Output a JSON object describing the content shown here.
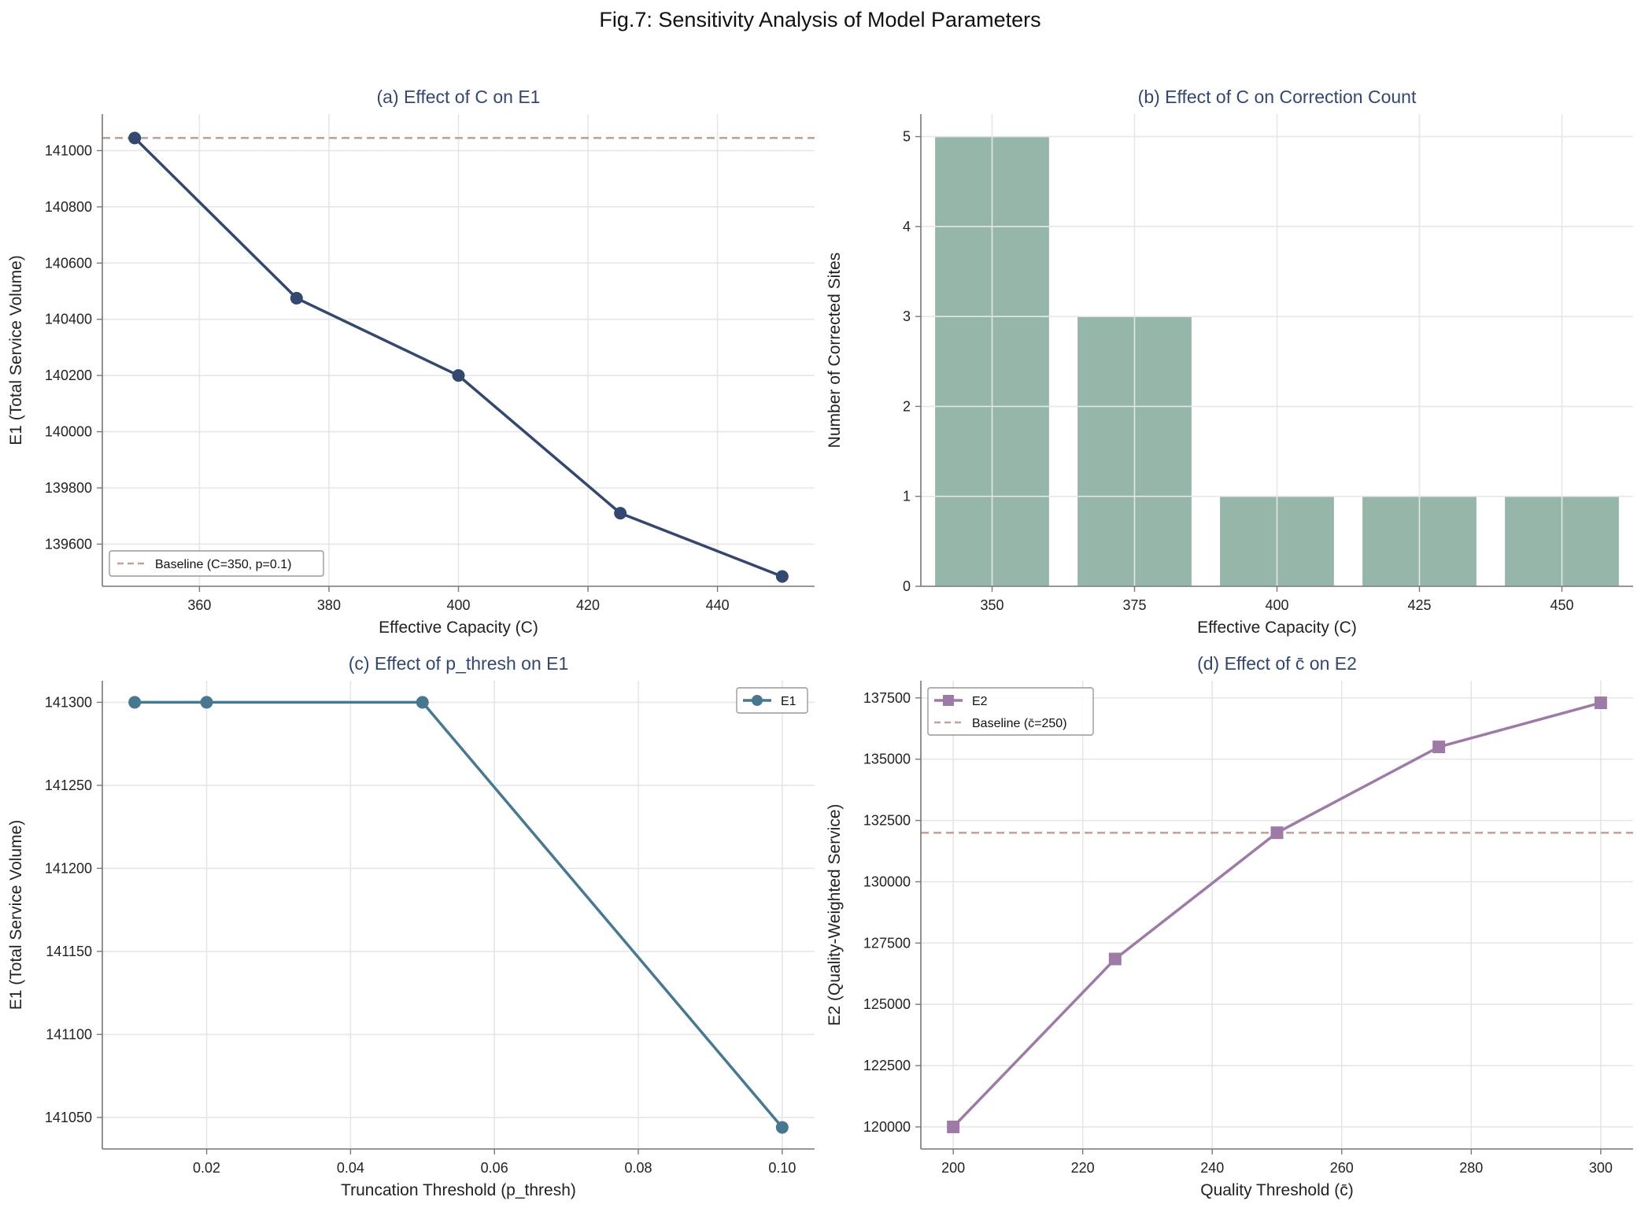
{
  "figure": {
    "title": "Fig.7: Sensitivity Analysis of Model Parameters"
  },
  "chart_data": [
    {
      "id": "a",
      "type": "line",
      "title": "(a) Effect of C on E1",
      "xlabel": "Effective Capacity (C)",
      "ylabel": "E1 (Total Service Volume)",
      "xlim": [
        345,
        455
      ],
      "ylim": [
        139450,
        141130
      ],
      "xticks": [
        360,
        380,
        400,
        420,
        440
      ],
      "yticks": [
        139600,
        139800,
        140000,
        140200,
        140400,
        140600,
        140800,
        141000
      ],
      "grid": true,
      "series": [
        {
          "x": [
            350,
            375,
            400,
            425,
            450
          ],
          "y": [
            141045,
            140475,
            140200,
            139710,
            139485
          ],
          "color": "#34476e",
          "marker": "circle"
        }
      ],
      "reference_lines": [
        {
          "y": 141045,
          "label": "Baseline (C=350, p=0.1)",
          "color": "#c0a39a",
          "dashed": true
        }
      ],
      "legend": {
        "position": "lower-left",
        "entries": [
          "Baseline (C=350, p=0.1)"
        ]
      }
    },
    {
      "id": "b",
      "type": "bar",
      "title": "(b) Effect of C on Correction Count",
      "xlabel": "Effective Capacity (C)",
      "ylabel": "Number of Corrected Sites",
      "categories": [
        "350",
        "375",
        "400",
        "425",
        "450"
      ],
      "values": [
        5,
        3,
        1,
        1,
        1
      ],
      "ylim": [
        0,
        5.25
      ],
      "yticks": [
        0,
        1,
        2,
        3,
        4,
        5
      ],
      "color": "#95b6a8",
      "grid": true
    },
    {
      "id": "c",
      "type": "line",
      "title": "(c) Effect of p_thresh on E1",
      "xlabel": "Truncation Threshold (p_thresh)",
      "ylabel": "E1 (Total Service Volume)",
      "xlim": [
        0.0055,
        0.1045
      ],
      "ylim": [
        141031,
        141313
      ],
      "xticks": [
        0.02,
        0.04,
        0.06,
        0.08,
        0.1
      ],
      "xtick_labels": [
        "0.02",
        "0.04",
        "0.06",
        "0.08",
        "0.10"
      ],
      "yticks": [
        141050,
        141100,
        141150,
        141200,
        141250,
        141300
      ],
      "grid": true,
      "series": [
        {
          "name": "E1",
          "x": [
            0.01,
            0.02,
            0.05,
            0.1
          ],
          "y": [
            141300,
            141300,
            141300,
            141044
          ],
          "color": "#48788f",
          "marker": "circle"
        }
      ],
      "legend": {
        "position": "top-right",
        "entries": [
          "E1"
        ]
      }
    },
    {
      "id": "d",
      "type": "line",
      "title": "(d) Effect of c̄ on E2",
      "xlabel": "Quality Threshold (c̄)",
      "ylabel": "E2 (Quality-Weighted Service)",
      "xlim": [
        195,
        305
      ],
      "ylim": [
        119100,
        138200
      ],
      "xticks": [
        200,
        220,
        240,
        260,
        280,
        300
      ],
      "yticks": [
        120000,
        122500,
        125000,
        127500,
        130000,
        132500,
        135000,
        137500
      ],
      "grid": true,
      "series": [
        {
          "name": "E2",
          "x": [
            200,
            225,
            250,
            275,
            300
          ],
          "y": [
            120000,
            126850,
            132000,
            135500,
            137300
          ],
          "color": "#9e7ba6",
          "marker": "square"
        }
      ],
      "reference_lines": [
        {
          "y": 132000,
          "label": "Baseline (c̄=250)",
          "color": "#c0a39a",
          "dashed": true
        }
      ],
      "legend": {
        "position": "top-left",
        "entries": [
          "E2",
          "Baseline (c̄=250)"
        ]
      }
    }
  ]
}
